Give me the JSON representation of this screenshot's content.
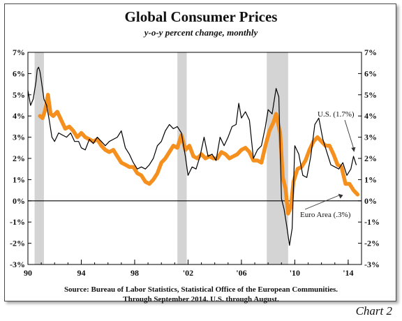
{
  "page": {
    "title": "Global Consumer Prices",
    "subtitle": "y-o-y percent change, monthly",
    "source_line1": "Source: Bureau of Labor Statistics, Statistical Office of the European Communities.",
    "source_line2": "Through September 2014.  U.S. through August.",
    "chart_label": "Chart 2"
  },
  "chart_data": {
    "type": "line",
    "title": "Global Consumer Prices",
    "subtitle": "y-o-y percent change, monthly",
    "x_range": [
      1990,
      2015
    ],
    "ylim": [
      -3,
      7
    ],
    "y_ticks": [
      -3,
      -2,
      -1,
      0,
      1,
      2,
      3,
      4,
      5,
      6,
      7
    ],
    "y_tick_labels": [
      "-3%",
      "-2%",
      "-1%",
      "0%",
      "1%",
      "2%",
      "3%",
      "4%",
      "5%",
      "6%",
      "7%"
    ],
    "x_ticks": [
      1990,
      1994,
      1998,
      2002,
      2006,
      2010,
      2014
    ],
    "x_tick_labels": [
      "90",
      "94",
      "98",
      "'02",
      "'06",
      "'10",
      "'14"
    ],
    "recessions": [
      [
        1990.5,
        1991.2
      ],
      [
        2001.2,
        2001.9
      ],
      [
        2007.9,
        2009.5
      ]
    ],
    "grid": false,
    "series": [
      {
        "name": "U.S.",
        "color": "#000000",
        "x": [
          1990.0,
          1990.2,
          1990.4,
          1990.6,
          1990.7,
          1990.8,
          1990.9,
          1991.0,
          1991.2,
          1991.4,
          1991.6,
          1991.8,
          1992.0,
          1992.3,
          1992.6,
          1992.9,
          1993.2,
          1993.5,
          1993.8,
          1994.0,
          1994.3,
          1994.6,
          1994.9,
          1995.2,
          1995.5,
          1995.8,
          1996.1,
          1996.4,
          1996.7,
          1997.0,
          1997.3,
          1997.6,
          1997.9,
          1998.2,
          1998.5,
          1998.8,
          1999.1,
          1999.4,
          1999.7,
          2000.0,
          2000.3,
          2000.6,
          2000.9,
          2001.2,
          2001.5,
          2001.8,
          2002.0,
          2002.3,
          2002.6,
          2002.9,
          2003.2,
          2003.5,
          2003.8,
          2004.1,
          2004.4,
          2004.7,
          2005.0,
          2005.3,
          2005.6,
          2005.8,
          2006.0,
          2006.3,
          2006.6,
          2006.9,
          2007.2,
          2007.5,
          2007.8,
          2008.0,
          2008.3,
          2008.6,
          2008.8,
          2009.0,
          2009.2,
          2009.4,
          2009.6,
          2009.8,
          2010.0,
          2010.3,
          2010.6,
          2010.9,
          2011.2,
          2011.5,
          2011.8,
          2012.1,
          2012.4,
          2012.7,
          2013.0,
          2013.3,
          2013.6,
          2013.9,
          2014.2,
          2014.4,
          2014.6
        ],
        "values": [
          5.2,
          4.5,
          4.8,
          5.6,
          6.2,
          6.3,
          6.1,
          5.7,
          4.8,
          4.5,
          3.8,
          3.0,
          2.8,
          3.2,
          3.1,
          3.0,
          3.2,
          2.8,
          2.8,
          2.5,
          2.4,
          2.9,
          2.7,
          3.0,
          2.8,
          2.6,
          2.8,
          2.9,
          3.0,
          3.3,
          2.5,
          2.2,
          1.8,
          1.5,
          1.6,
          1.5,
          1.7,
          2.0,
          2.6,
          2.8,
          3.3,
          3.6,
          3.4,
          3.5,
          3.2,
          2.1,
          1.2,
          1.6,
          1.5,
          2.1,
          3.0,
          2.1,
          2.2,
          1.9,
          3.0,
          2.6,
          3.0,
          3.5,
          3.6,
          4.6,
          3.9,
          4.2,
          3.8,
          2.0,
          2.4,
          2.6,
          3.5,
          4.3,
          4.1,
          5.3,
          4.9,
          0.1,
          -0.4,
          -1.2,
          -2.1,
          -1.3,
          2.6,
          2.2,
          1.2,
          1.1,
          2.1,
          3.6,
          3.9,
          2.9,
          2.3,
          1.7,
          1.6,
          1.5,
          1.8,
          1.2,
          1.5,
          2.1,
          1.7
        ]
      },
      {
        "name": "Euro Area",
        "color": "#f5901e",
        "x": [
          1990.9,
          1991.1,
          1991.3,
          1991.5,
          1991.7,
          1991.9,
          1992.2,
          1992.5,
          1992.8,
          1993.1,
          1993.4,
          1993.7,
          1994.0,
          1994.3,
          1994.6,
          1994.9,
          1995.2,
          1995.5,
          1995.8,
          1996.1,
          1996.4,
          1996.7,
          1997.0,
          1997.3,
          1997.6,
          1997.9,
          1998.2,
          1998.5,
          1998.8,
          1999.1,
          1999.4,
          1999.7,
          2000.0,
          2000.3,
          2000.6,
          2000.9,
          2001.2,
          2001.5,
          2001.8,
          2002.1,
          2002.4,
          2002.7,
          2003.0,
          2003.3,
          2003.6,
          2003.9,
          2004.2,
          2004.5,
          2004.8,
          2005.1,
          2005.4,
          2005.7,
          2006.0,
          2006.3,
          2006.6,
          2006.9,
          2007.2,
          2007.5,
          2007.8,
          2008.1,
          2008.4,
          2008.6,
          2008.9,
          2009.1,
          2009.3,
          2009.5,
          2009.7,
          2009.9,
          2010.2,
          2010.5,
          2010.8,
          2011.1,
          2011.4,
          2011.7,
          2012.0,
          2012.3,
          2012.6,
          2012.9,
          2013.2,
          2013.5,
          2013.8,
          2014.1,
          2014.4,
          2014.7
        ],
        "values": [
          4.0,
          3.9,
          4.3,
          5.0,
          4.1,
          4.0,
          4.2,
          3.8,
          3.4,
          3.5,
          3.3,
          3.0,
          3.2,
          3.0,
          2.9,
          2.8,
          2.9,
          2.6,
          2.4,
          2.3,
          2.4,
          2.1,
          1.8,
          1.7,
          1.6,
          1.6,
          1.3,
          1.2,
          0.9,
          0.8,
          1.0,
          1.3,
          1.8,
          2.0,
          2.3,
          2.6,
          2.5,
          3.1,
          2.4,
          2.6,
          2.1,
          2.0,
          2.2,
          2.0,
          2.1,
          2.0,
          2.0,
          2.3,
          2.2,
          2.0,
          2.1,
          2.2,
          2.4,
          2.5,
          2.3,
          1.9,
          1.9,
          1.8,
          2.6,
          3.3,
          3.7,
          4.1,
          3.2,
          1.1,
          0.6,
          -0.6,
          -0.3,
          0.9,
          1.5,
          1.6,
          1.9,
          2.4,
          2.8,
          3.0,
          2.8,
          2.6,
          2.6,
          2.2,
          1.7,
          1.6,
          0.8,
          0.8,
          0.5,
          0.3
        ]
      }
    ],
    "annotations": [
      {
        "text": "U.S. (1.7%)",
        "target_x": 2014.6,
        "target_y": 2.2
      },
      {
        "text": "Euro Area (.3%)",
        "target_x": 2013.2,
        "target_y": 0.4
      }
    ]
  }
}
